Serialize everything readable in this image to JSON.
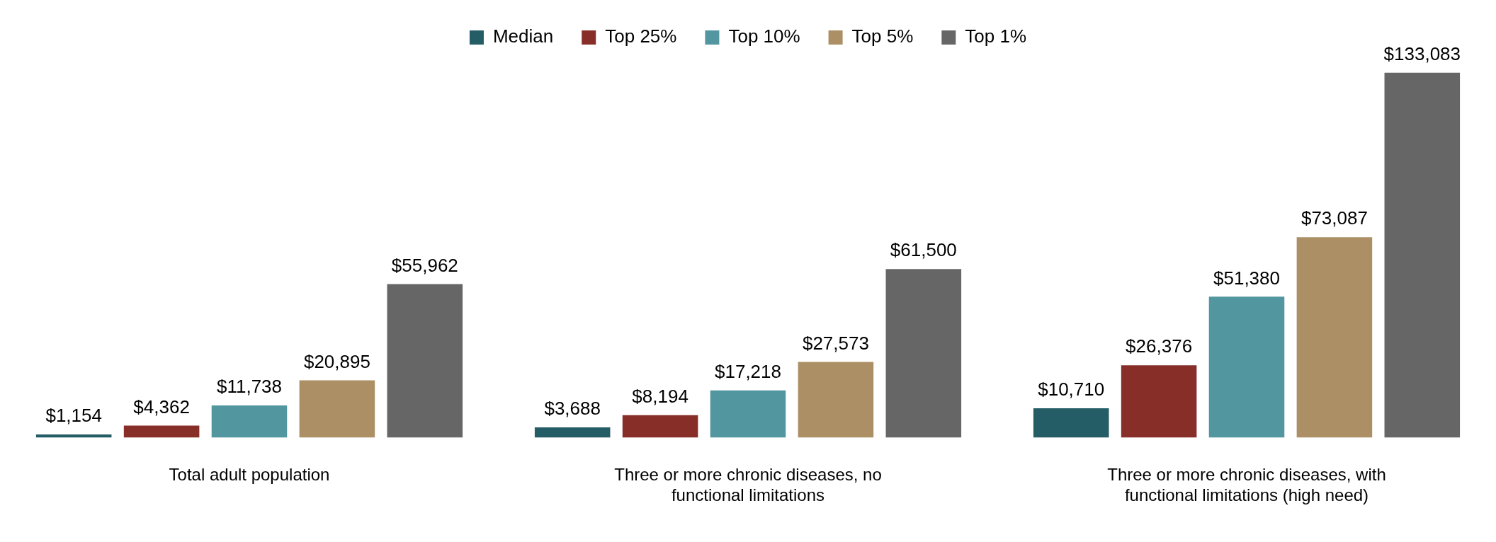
{
  "chart_data": {
    "type": "bar",
    "categories": [
      "Total adult population",
      "Three or more chronic diseases, no functional limitations",
      "Three or more chronic diseases, with functional limitations (high need)"
    ],
    "series": [
      {
        "name": "Median",
        "color": "#245d66",
        "values": [
          1154,
          3688,
          10710
        ],
        "value_labels": [
          "$1,154",
          "$3,688",
          "$10,710"
        ]
      },
      {
        "name": "Top 25%",
        "color": "#872e29",
        "values": [
          4362,
          8194,
          26376
        ],
        "value_labels": [
          "$4,362",
          "$8,194",
          "$26,376"
        ]
      },
      {
        "name": "Top 10%",
        "color": "#5296a0",
        "values": [
          11738,
          17218,
          51380
        ],
        "value_labels": [
          "$11,738",
          "$17,218",
          "$51,380"
        ]
      },
      {
        "name": "Top 5%",
        "color": "#ad8f65",
        "values": [
          20895,
          27573,
          73087
        ],
        "value_labels": [
          "$20,895",
          "$27,573",
          "$73,087"
        ]
      },
      {
        "name": "Top 1%",
        "color": "#666666",
        "values": [
          55962,
          61500,
          133083
        ],
        "value_labels": [
          "$55,962",
          "$61,500",
          "$133,083"
        ]
      }
    ],
    "legend": "top",
    "grid": false
  }
}
